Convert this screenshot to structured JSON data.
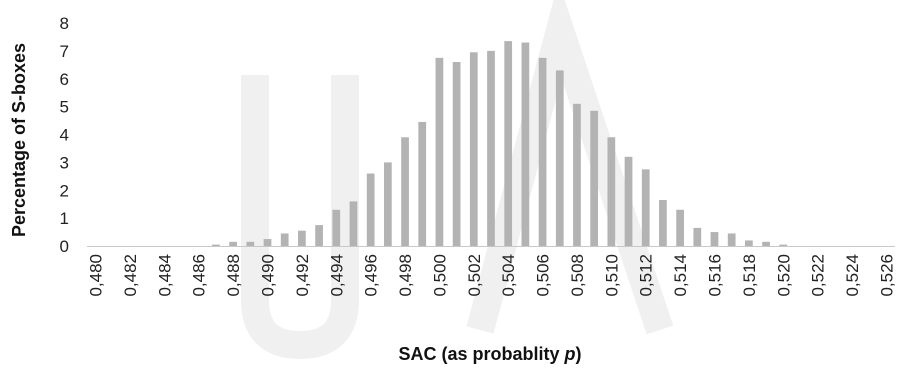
{
  "chart_data": {
    "type": "bar",
    "title": "",
    "xlabel_main": "SAC (as probablity ",
    "xlabel_var": "p",
    "xlabel_end": ")",
    "ylabel": "Percentage of S-boxes",
    "ylim": [
      0,
      8
    ],
    "yticks": [
      "0",
      "1",
      "2",
      "3",
      "4",
      "5",
      "6",
      "7",
      "8"
    ],
    "grid": false,
    "legend": "none",
    "bar_color": "#b3b3b3",
    "categories": [
      "0,480",
      "0,481",
      "0,482",
      "0,483",
      "0,484",
      "0,485",
      "0,486",
      "0,487",
      "0,488",
      "0,489",
      "0,490",
      "0,491",
      "0,492",
      "0,493",
      "0,494",
      "0,495",
      "0,496",
      "0,497",
      "0,498",
      "0,499",
      "0,500",
      "0,501",
      "0,502",
      "0,503",
      "0,504",
      "0,505",
      "0,506",
      "0,507",
      "0,508",
      "0,509",
      "0,510",
      "0,511",
      "0,512",
      "0,513",
      "0,514",
      "0,515",
      "0,516",
      "0,517",
      "0,518",
      "0,519",
      "0,520",
      "0,521",
      "0,522",
      "0,523",
      "0,524",
      "0,525",
      "0,526"
    ],
    "xtick_labels": [
      "0,480",
      "0,482",
      "0,484",
      "0,486",
      "0,488",
      "0,490",
      "0,492",
      "0,494",
      "0,496",
      "0,498",
      "0,500",
      "0,502",
      "0,504",
      "0,506",
      "0,508",
      "0,510",
      "0,512",
      "0,514",
      "0,516",
      "0,518",
      "0,520",
      "0,522",
      "0,524",
      "0,526"
    ],
    "values": [
      0,
      0,
      0,
      0,
      0,
      0,
      0,
      0.05,
      0.15,
      0.15,
      0.25,
      0.45,
      0.55,
      0.75,
      1.3,
      1.6,
      2.6,
      3.0,
      3.9,
      4.45,
      6.75,
      6.6,
      6.95,
      7.0,
      7.35,
      7.3,
      6.75,
      6.3,
      5.1,
      4.85,
      3.9,
      3.2,
      2.75,
      1.65,
      1.3,
      0.65,
      0.5,
      0.45,
      0.2,
      0.15,
      0.05,
      0,
      0,
      0,
      0,
      0,
      0
    ]
  }
}
